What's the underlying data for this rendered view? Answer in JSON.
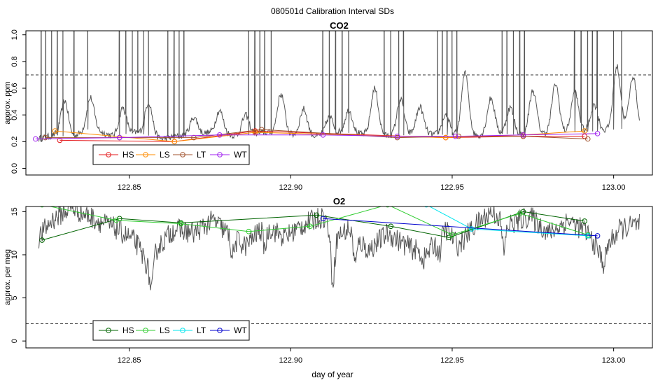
{
  "figure_title": "080501d   Calibration Interval SDs",
  "xlabel": "day of year",
  "chart_data": [
    {
      "type": "line",
      "title": "CO2",
      "ylabel": "approx. ppm",
      "xlim": [
        122.818,
        123.012
      ],
      "ylim": [
        -0.05,
        1.03
      ],
      "xticks": [
        122.85,
        122.9,
        122.95,
        123.0
      ],
      "xtick_labels": [
        "122.85",
        "122.90",
        "122.95",
        "123.00"
      ],
      "yticks": [
        0.0,
        0.2,
        0.4,
        0.6,
        0.8,
        1.0
      ],
      "ytick_labels": [
        "0.0",
        "0.2",
        "0.4",
        "0.6",
        "0.8",
        "1.0"
      ],
      "threshold": 0.7,
      "trace": {
        "color": "#555555",
        "baseline_knots": [
          [
            122.822,
            0.22
          ],
          [
            122.827,
            0.25
          ],
          [
            122.832,
            0.23
          ],
          [
            122.838,
            0.3
          ],
          [
            122.845,
            0.24
          ],
          [
            122.852,
            0.27
          ],
          [
            122.86,
            0.22
          ],
          [
            122.868,
            0.25
          ],
          [
            122.876,
            0.27
          ],
          [
            122.884,
            0.24
          ],
          [
            122.892,
            0.27
          ],
          [
            122.9,
            0.25
          ],
          [
            122.908,
            0.24
          ],
          [
            122.916,
            0.27
          ],
          [
            122.924,
            0.25
          ],
          [
            122.932,
            0.24
          ],
          [
            122.94,
            0.26
          ],
          [
            122.948,
            0.25
          ],
          [
            122.956,
            0.24
          ],
          [
            122.964,
            0.26
          ],
          [
            122.972,
            0.25
          ],
          [
            122.98,
            0.26
          ],
          [
            122.988,
            0.27
          ],
          [
            122.996,
            0.28
          ],
          [
            123.004,
            0.3
          ],
          [
            123.008,
            0.28
          ]
        ],
        "peaks": [
          [
            122.83,
            0.52
          ],
          [
            122.838,
            0.48
          ],
          [
            122.848,
            0.45
          ],
          [
            122.856,
            0.5
          ],
          [
            122.87,
            0.38
          ],
          [
            122.878,
            0.42
          ],
          [
            122.886,
            0.4
          ],
          [
            122.897,
            0.55
          ],
          [
            122.904,
            0.45
          ],
          [
            122.912,
            0.38
          ],
          [
            122.918,
            0.42
          ],
          [
            122.926,
            0.6
          ],
          [
            122.934,
            0.52
          ],
          [
            122.94,
            0.45
          ],
          [
            122.948,
            0.4
          ],
          [
            122.954,
            0.72
          ],
          [
            122.962,
            0.52
          ],
          [
            122.968,
            0.45
          ],
          [
            122.975,
            0.58
          ],
          [
            122.982,
            0.62
          ],
          [
            122.988,
            0.55
          ],
          [
            122.994,
            0.45
          ],
          [
            123.001,
            0.72
          ],
          [
            123.006,
            0.65
          ]
        ],
        "spikes": [
          122.8228,
          122.8242,
          122.826,
          122.8278,
          122.8295,
          122.833,
          122.8372,
          122.847,
          122.849,
          122.851,
          122.8527,
          122.8545,
          122.856,
          122.862,
          122.864,
          122.8655,
          122.867,
          122.887,
          122.889,
          122.8905,
          122.892,
          122.894,
          122.91,
          122.912,
          122.914,
          122.916,
          122.918,
          122.929,
          122.931,
          122.9335,
          122.935,
          122.9455,
          122.947,
          122.9485,
          122.95,
          122.9515,
          122.9655,
          122.967,
          122.969,
          122.971,
          122.9725,
          122.988,
          122.99,
          122.992,
          122.9935,
          122.995,
          123.0,
          123.0025
        ]
      },
      "series": [
        {
          "name": "HS",
          "color": "#e41a1c",
          "x": [
            122.8285,
            122.864,
            122.889,
            122.948,
            122.972,
            122.991
          ],
          "y": [
            0.21,
            0.2,
            0.28,
            0.23,
            0.24,
            0.24
          ]
        },
        {
          "name": "LS",
          "color": "#ff8c00",
          "x": [
            122.827,
            122.864,
            122.889,
            122.948,
            122.972,
            122.991
          ],
          "y": [
            0.28,
            0.2,
            0.27,
            0.23,
            0.25,
            0.28
          ]
        },
        {
          "name": "LT",
          "color": "#a0522d",
          "x": [
            122.824,
            122.847,
            122.87,
            122.891,
            122.933,
            122.952,
            122.972,
            122.992
          ],
          "y": [
            0.23,
            0.23,
            0.23,
            0.29,
            0.23,
            0.24,
            0.24,
            0.22
          ]
        },
        {
          "name": "WT",
          "color": "#a020f0",
          "x": [
            122.821,
            122.847,
            122.878,
            122.91,
            122.933,
            122.951,
            122.972,
            122.995
          ],
          "y": [
            0.22,
            0.23,
            0.25,
            0.25,
            0.24,
            0.24,
            0.25,
            0.26
          ]
        }
      ],
      "legend": {
        "position": "bottom-left",
        "entries": [
          "HS",
          "LS",
          "LT",
          "WT"
        ]
      }
    },
    {
      "type": "line",
      "title": "O2",
      "ylabel": "approx. per meg",
      "xlim": [
        122.818,
        123.012
      ],
      "ylim": [
        -0.8,
        15.6
      ],
      "xticks": [
        122.85,
        122.9,
        122.95,
        123.0
      ],
      "xtick_labels": [
        "122.85",
        "122.90",
        "122.95",
        "123.00"
      ],
      "yticks": [
        0,
        5,
        10,
        15
      ],
      "ytick_labels": [
        "0",
        "5",
        "10",
        "15"
      ],
      "threshold": 2,
      "trace": {
        "color": "#555555",
        "baseline_knots": [
          [
            122.822,
            12.0
          ],
          [
            122.826,
            14.0
          ],
          [
            122.832,
            15.5
          ],
          [
            122.84,
            14.0
          ],
          [
            122.846,
            13.0
          ],
          [
            122.852,
            11.5
          ],
          [
            122.856,
            8.5
          ],
          [
            122.858,
            10.5
          ],
          [
            122.864,
            13.0
          ],
          [
            122.87,
            12.5
          ],
          [
            122.876,
            14.0
          ],
          [
            122.882,
            12.0
          ],
          [
            122.886,
            11.0
          ],
          [
            122.892,
            13.5
          ],
          [
            122.898,
            12.0
          ],
          [
            122.904,
            13.5
          ],
          [
            122.91,
            14.5
          ],
          [
            122.914,
            12.0
          ],
          [
            122.918,
            13.0
          ],
          [
            122.924,
            10.5
          ],
          [
            122.93,
            12.5
          ],
          [
            122.936,
            11.0
          ],
          [
            122.942,
            10.0
          ],
          [
            122.948,
            13.0
          ],
          [
            122.952,
            11.0
          ],
          [
            122.956,
            13.0
          ],
          [
            122.962,
            15.0
          ],
          [
            122.968,
            13.5
          ],
          [
            122.974,
            14.5
          ],
          [
            122.98,
            12.5
          ],
          [
            122.986,
            14.0
          ],
          [
            122.992,
            12.5
          ],
          [
            122.996,
            10.0
          ],
          [
            123.002,
            13.0
          ],
          [
            123.008,
            13.5
          ]
        ],
        "dips": [
          [
            122.857,
            6.0
          ],
          [
            122.913,
            7.0
          ],
          [
            122.92,
            9.0
          ],
          [
            122.941,
            9.5
          ],
          [
            122.946,
            10.0
          ],
          [
            122.997,
            9.0
          ],
          [
            122.882,
            10.0
          ],
          [
            122.892,
            11.0
          ],
          [
            122.966,
            10.5
          ]
        ]
      },
      "series": [
        {
          "name": "HS",
          "color": "#006400",
          "x": [
            122.823,
            122.847,
            122.866,
            122.908,
            122.931,
            122.949,
            122.972,
            122.991
          ],
          "y": [
            11.7,
            14.2,
            13.7,
            14.6,
            13.3,
            12.0,
            15.0,
            13.9
          ]
        },
        {
          "name": "LS",
          "color": "#32cd32",
          "x": [
            122.823,
            122.846,
            122.866,
            122.887,
            122.906,
            122.93,
            122.95,
            122.971,
            122.992
          ],
          "y": [
            15.8,
            14.0,
            13.6,
            12.7,
            13.3,
            15.8,
            12.3,
            14.8,
            12.3
          ]
        },
        {
          "name": "LT",
          "color": "#00e5ee",
          "x": [
            122.942,
            122.956,
            122.992
          ],
          "y": [
            15.8,
            13.0,
            12.2
          ]
        },
        {
          "name": "WT",
          "color": "#0000cd",
          "x": [
            122.91,
            122.995
          ],
          "y": [
            14.2,
            12.2
          ]
        }
      ],
      "legend": {
        "position": "bottom-left",
        "entries": [
          "HS",
          "LS",
          "LT",
          "WT"
        ]
      }
    }
  ]
}
